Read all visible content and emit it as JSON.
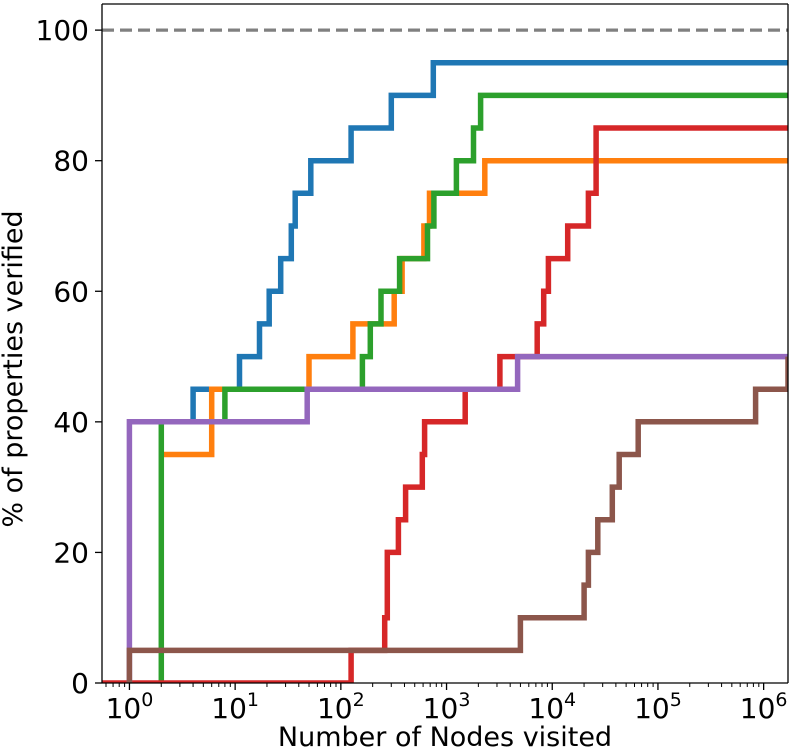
{
  "chart_data": {
    "type": "line",
    "title": "",
    "xlabel": "Number of Nodes visited",
    "ylabel": "% of properties verified",
    "xscale": "log",
    "xlim": [
      0.55,
      1700000
    ],
    "ylim": [
      0,
      104
    ],
    "grid": false,
    "legend": "none",
    "x_ticks": [
      {
        "value": 1,
        "base": "10",
        "exp": "0"
      },
      {
        "value": 10,
        "base": "10",
        "exp": "1"
      },
      {
        "value": 100,
        "base": "10",
        "exp": "2"
      },
      {
        "value": 1000,
        "base": "10",
        "exp": "3"
      },
      {
        "value": 10000,
        "base": "10",
        "exp": "4"
      },
      {
        "value": 100000,
        "base": "10",
        "exp": "5"
      },
      {
        "value": 1000000,
        "base": "10",
        "exp": "6"
      }
    ],
    "y_ticks": [
      {
        "value": 0,
        "label": "0"
      },
      {
        "value": 20,
        "label": "20"
      },
      {
        "value": 40,
        "label": "40"
      },
      {
        "value": 60,
        "label": "60"
      },
      {
        "value": 80,
        "label": "80"
      },
      {
        "value": 100,
        "label": "100"
      }
    ],
    "reference_line": {
      "y": 100,
      "color": "#808080",
      "style": "dashed"
    },
    "step_style": "post",
    "series": [
      {
        "color": "#1f77b4",
        "steps": [
          [
            4,
            40
          ],
          [
            4,
            45
          ],
          [
            11,
            45
          ],
          [
            11,
            50
          ],
          [
            17,
            50
          ],
          [
            17,
            55
          ],
          [
            21,
            55
          ],
          [
            21,
            60
          ],
          [
            27,
            60
          ],
          [
            27,
            65
          ],
          [
            34,
            65
          ],
          [
            34,
            70
          ],
          [
            37,
            70
          ],
          [
            37,
            75
          ],
          [
            52,
            75
          ],
          [
            52,
            80
          ],
          [
            125,
            80
          ],
          [
            125,
            85
          ],
          [
            300,
            85
          ],
          [
            300,
            90
          ],
          [
            750,
            90
          ],
          [
            750,
            95
          ],
          [
            1700000,
            95
          ]
        ]
      },
      {
        "color": "#ff7f0e",
        "steps": [
          [
            2,
            35
          ],
          [
            6,
            35
          ],
          [
            6,
            45
          ],
          [
            50,
            45
          ],
          [
            50,
            50
          ],
          [
            130,
            50
          ],
          [
            130,
            55
          ],
          [
            320,
            55
          ],
          [
            320,
            60
          ],
          [
            380,
            60
          ],
          [
            380,
            65
          ],
          [
            610,
            65
          ],
          [
            610,
            70
          ],
          [
            690,
            70
          ],
          [
            690,
            75
          ],
          [
            2300,
            75
          ],
          [
            2300,
            80
          ],
          [
            1700000,
            80
          ]
        ]
      },
      {
        "color": "#2ca02c",
        "steps": [
          [
            2,
            0
          ],
          [
            2,
            40
          ],
          [
            8,
            40
          ],
          [
            8,
            45
          ],
          [
            160,
            45
          ],
          [
            160,
            50
          ],
          [
            190,
            50
          ],
          [
            190,
            55
          ],
          [
            240,
            55
          ],
          [
            240,
            60
          ],
          [
            360,
            60
          ],
          [
            360,
            65
          ],
          [
            660,
            65
          ],
          [
            660,
            70
          ],
          [
            760,
            70
          ],
          [
            760,
            75
          ],
          [
            1240,
            75
          ],
          [
            1240,
            80
          ],
          [
            1800,
            80
          ],
          [
            1800,
            85
          ],
          [
            2100,
            85
          ],
          [
            2100,
            90
          ],
          [
            1700000,
            90
          ]
        ]
      },
      {
        "color": "#d62728",
        "steps": [
          [
            0.55,
            0
          ],
          [
            125,
            0
          ],
          [
            125,
            5
          ],
          [
            260,
            5
          ],
          [
            260,
            10
          ],
          [
            275,
            10
          ],
          [
            275,
            20
          ],
          [
            350,
            20
          ],
          [
            350,
            25
          ],
          [
            410,
            25
          ],
          [
            410,
            30
          ],
          [
            590,
            30
          ],
          [
            590,
            35
          ],
          [
            620,
            35
          ],
          [
            620,
            40
          ],
          [
            1500,
            40
          ],
          [
            1500,
            45
          ],
          [
            3200,
            45
          ],
          [
            3200,
            50
          ],
          [
            7200,
            50
          ],
          [
            7200,
            55
          ],
          [
            8300,
            55
          ],
          [
            8300,
            60
          ],
          [
            9200,
            60
          ],
          [
            9200,
            65
          ],
          [
            14000,
            65
          ],
          [
            14000,
            70
          ],
          [
            22000,
            70
          ],
          [
            22000,
            75
          ],
          [
            26000,
            75
          ],
          [
            26000,
            85
          ],
          [
            1700000,
            85
          ]
        ]
      },
      {
        "color": "#9467bd",
        "steps": [
          [
            1,
            0
          ],
          [
            1,
            40
          ],
          [
            48,
            40
          ],
          [
            48,
            45
          ],
          [
            4700,
            45
          ],
          [
            4700,
            50
          ],
          [
            1700000,
            50
          ]
        ]
      },
      {
        "color": "#8c564b",
        "steps": [
          [
            1,
            0
          ],
          [
            1,
            5
          ],
          [
            5000,
            5
          ],
          [
            5000,
            10
          ],
          [
            20000,
            10
          ],
          [
            20000,
            15
          ],
          [
            22000,
            15
          ],
          [
            22000,
            20
          ],
          [
            27000,
            20
          ],
          [
            27000,
            25
          ],
          [
            37000,
            25
          ],
          [
            37000,
            30
          ],
          [
            43000,
            30
          ],
          [
            43000,
            35
          ],
          [
            65000,
            35
          ],
          [
            65000,
            40
          ],
          [
            840000,
            40
          ],
          [
            840000,
            45
          ],
          [
            1700000,
            45
          ],
          [
            1700000,
            50
          ]
        ]
      }
    ]
  }
}
